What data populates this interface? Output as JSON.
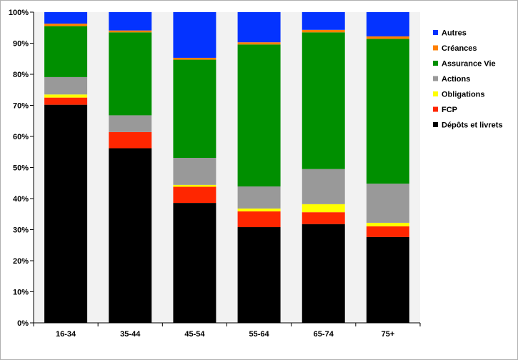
{
  "chart_data": {
    "type": "bar",
    "stacked": true,
    "categories": [
      "16-34",
      "35-44",
      "45-54",
      "55-64",
      "65-74",
      "75+"
    ],
    "y_tick_labels": [
      "0%",
      "10%",
      "20%",
      "30%",
      "40%",
      "50%",
      "60%",
      "70%",
      "80%",
      "90%",
      "100%"
    ],
    "ylim": [
      0,
      100
    ],
    "grid": false,
    "legend_position": "right",
    "series": [
      {
        "name": "Dépôts et livrets",
        "color": "#000000",
        "values": [
          70.2,
          56.2,
          38.6,
          30.8,
          31.8,
          27.6
        ]
      },
      {
        "name": "FCP",
        "color": "#ff2600",
        "values": [
          2.3,
          5.2,
          5.2,
          5.1,
          3.8,
          3.5
        ]
      },
      {
        "name": "Obligations",
        "color": "#ffff00",
        "values": [
          1.0,
          0.0,
          0.6,
          0.9,
          2.6,
          1.1
        ]
      },
      {
        "name": "Actions",
        "color": "#999999",
        "values": [
          5.6,
          5.4,
          8.7,
          7.1,
          11.3,
          12.6
        ]
      },
      {
        "name": "Assurance Vie",
        "color": "#008f00",
        "values": [
          16.4,
          26.7,
          31.6,
          45.7,
          44.0,
          46.6
        ]
      },
      {
        "name": "Créances",
        "color": "#ff8000",
        "values": [
          0.8,
          0.6,
          0.6,
          0.7,
          0.8,
          0.8
        ]
      },
      {
        "name": "Autres",
        "color": "#0433ff",
        "values": [
          3.7,
          5.9,
          14.7,
          9.7,
          5.7,
          7.8
        ]
      }
    ],
    "legend_order": [
      "Autres",
      "Créances",
      "Assurance Vie",
      "Actions",
      "Obligations",
      "FCP",
      "Dépôts et livrets"
    ],
    "colors": {
      "plot_background": "#ffffff",
      "column_band": "#f2f2f2"
    }
  }
}
